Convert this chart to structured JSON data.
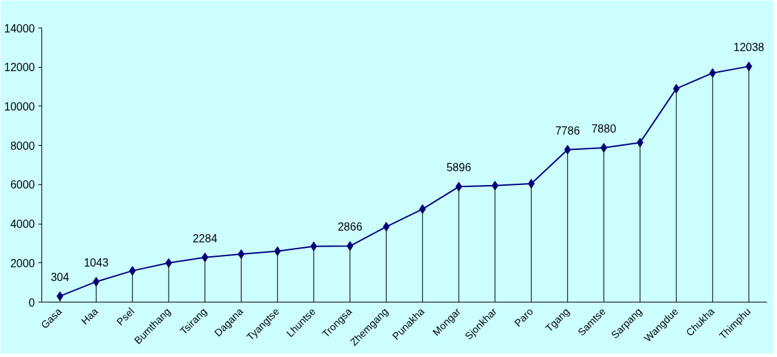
{
  "chart_data": {
    "type": "line",
    "categories": [
      "Gasa",
      "Haa",
      "Psel",
      "Bumthang",
      "Tsirang",
      "Dagana",
      "Tyangtse",
      "Lhuntse",
      "Trongsa",
      "Zhemgang",
      "Punakha",
      "Mongar",
      "Sjonkhar",
      "Paro",
      "Tgang",
      "Samtse",
      "Sarpang",
      "Wangdue",
      "Chukha",
      "Thimphu"
    ],
    "series": [
      {
        "color": "#000080",
        "values": [
          304,
          1043,
          1600,
          2000,
          2284,
          2450,
          2600,
          2850,
          2866,
          3850,
          4750,
          5896,
          5950,
          6050,
          7786,
          7880,
          8150,
          10900,
          11700,
          12038
        ],
        "value_labels": [
          "304",
          "1043",
          null,
          null,
          "2284",
          null,
          null,
          null,
          "2866",
          null,
          null,
          "5896",
          null,
          null,
          "7786",
          "7880",
          null,
          null,
          null,
          "12038"
        ]
      },
      {
        "type": "bar",
        "color": "#000000",
        "values": [
          300,
          1050,
          1600,
          2000,
          2300,
          2450,
          2600,
          2850,
          2850,
          3850,
          4750,
          5900,
          5950,
          6050,
          7800,
          7900,
          8150,
          10900,
          11700,
          12050
        ]
      }
    ],
    "ylim": [
      0,
      14000
    ],
    "yticks": [
      0,
      2000,
      4000,
      6000,
      8000,
      10000,
      12000,
      14000
    ],
    "grid": false,
    "marker": "diamond",
    "line_style": "solid"
  }
}
